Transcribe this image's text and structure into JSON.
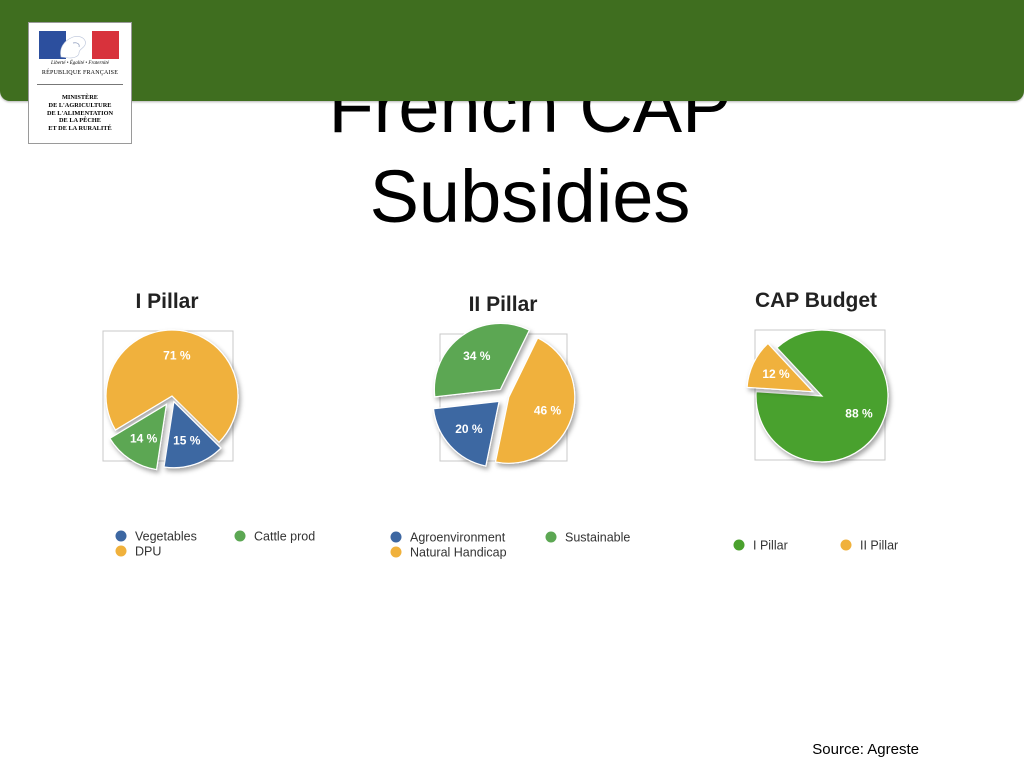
{
  "slide": {
    "title_line1": "French CAP",
    "title_line2": "Subsidies",
    "source": "Source: Agreste"
  },
  "logo": {
    "motto": "Liberté • Égalité • Fraternité",
    "republic": "RÉPUBLIQUE FRANÇAISE",
    "ministry_lines": [
      "MINISTÈRE",
      "DE L'AGRICULTURE",
      "DE L'ALIMENTATION",
      "DE LA PÊCHE",
      "ET DE LA RURALITÉ"
    ],
    "colors": {
      "blue": "#2c4f9e",
      "red": "#d8323c"
    }
  },
  "colors": {
    "banner": "#3f6e1f",
    "blue": "#3d67a2",
    "green": "#5ca753",
    "orange": "#f0b13c",
    "budget_green": "#4aa12d",
    "budget_orange": "#f0b13c"
  },
  "chart_data": [
    {
      "type": "pie",
      "title": "I Pillar",
      "series": [
        {
          "name": "DPU",
          "value": 71,
          "label": "71 %",
          "color": "#f0b13c"
        },
        {
          "name": "Vegetables",
          "value": 15,
          "label": "15 %",
          "color": "#3d67a2"
        },
        {
          "name": "Cattle prod",
          "value": 14,
          "label": "14 %",
          "color": "#5ca753"
        }
      ],
      "legend": [
        "Vegetables",
        "Cattle prod",
        "DPU"
      ]
    },
    {
      "type": "pie",
      "title": "II Pillar",
      "series": [
        {
          "name": "Natural Handicap",
          "value": 46,
          "label": "46 %",
          "color": "#f0b13c"
        },
        {
          "name": "Agroenvironment",
          "value": 20,
          "label": "20 %",
          "color": "#3d67a2"
        },
        {
          "name": "Sustainable",
          "value": 34,
          "label": "34 %",
          "color": "#5ca753"
        }
      ],
      "legend": [
        "Agroenvironment",
        "Sustainable",
        "Natural Handicap"
      ]
    },
    {
      "type": "pie",
      "title": "CAP Budget",
      "series": [
        {
          "name": "I Pillar",
          "value": 88,
          "label": "88 %",
          "color": "#4aa12d"
        },
        {
          "name": "II Pillar",
          "value": 12,
          "label": "12 %",
          "color": "#f0b13c"
        }
      ],
      "legend": [
        "I Pillar",
        "II Pillar"
      ]
    }
  ]
}
